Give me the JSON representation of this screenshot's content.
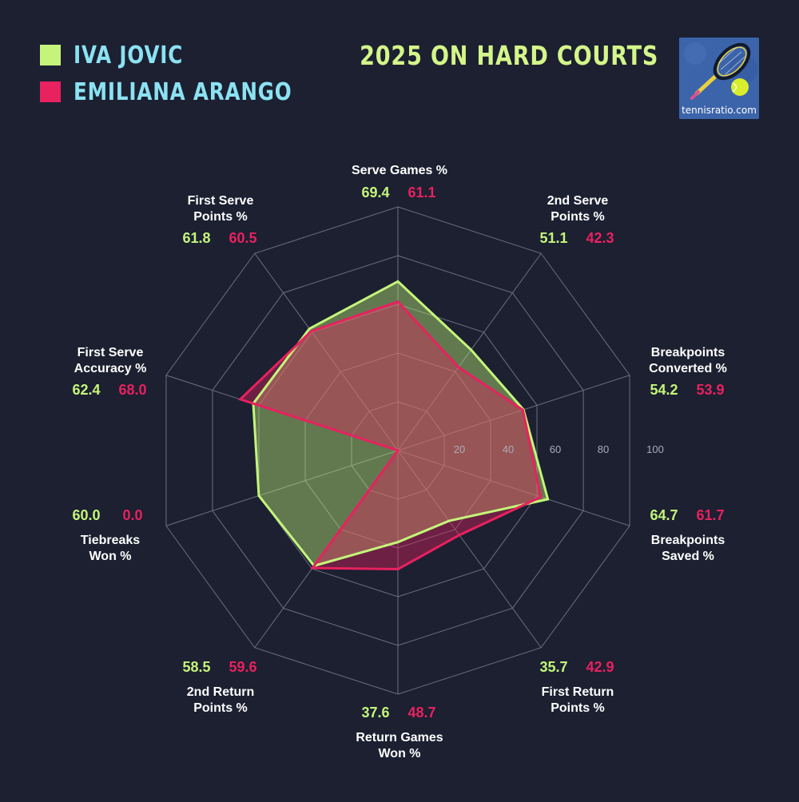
{
  "header": {
    "title": "2025 ON HARD COURTS",
    "logo_text": "tennisratio.com"
  },
  "colors": {
    "background": "#1c2031",
    "player1": "#c4f57a",
    "player2": "#e8215f",
    "legend_text": "#8be2f2",
    "title_text": "#d4f589",
    "label_text": "#ffffff",
    "grid": "#6b6f80"
  },
  "chart_data": {
    "type": "radar",
    "title": "2025 ON HARD COURTS",
    "range": [
      0,
      100
    ],
    "ticks": [
      20,
      40,
      60,
      80,
      100
    ],
    "grid": true,
    "legend_position": "top-left",
    "axes": [
      "Serve Games %",
      "2nd Serve Points %",
      "Breakpoints Converted %",
      "Breakpoints Saved %",
      "First Return Points %",
      "Return Games Won %",
      "2nd Return Points %",
      "Tiebreaks Won %",
      "First Serve Accuracy %",
      "First Serve Points %"
    ],
    "axis_label_lines": [
      [
        "Serve Games %"
      ],
      [
        "2nd Serve",
        "Points %"
      ],
      [
        "Breakpoints",
        "Converted %"
      ],
      [
        "Breakpoints",
        "Saved %"
      ],
      [
        "First Return",
        "Points %"
      ],
      [
        "Return Games",
        "Won %"
      ],
      [
        "2nd Return",
        "Points %"
      ],
      [
        "Tiebreaks",
        "Won %"
      ],
      [
        "First Serve",
        "Accuracy %"
      ],
      [
        "First Serve",
        "Points %"
      ]
    ],
    "series": [
      {
        "name": "IVA JOVIC",
        "values": [
          69.4,
          51.1,
          54.2,
          64.7,
          35.7,
          37.6,
          58.5,
          60.0,
          62.4,
          61.8
        ],
        "labels": [
          "69.4",
          "51.1",
          "54.2",
          "64.7",
          "35.7",
          "37.6",
          "58.5",
          "60.0",
          "62.4",
          "61.8"
        ]
      },
      {
        "name": "EMILIANA ARANGO",
        "values": [
          61.1,
          42.3,
          53.9,
          61.7,
          42.9,
          48.7,
          59.6,
          0.0,
          68.0,
          60.5
        ],
        "labels": [
          "61.1",
          "42.3",
          "53.9",
          "61.7",
          "42.9",
          "48.7",
          "59.6",
          "0.0",
          "68.0",
          "60.5"
        ]
      }
    ]
  }
}
